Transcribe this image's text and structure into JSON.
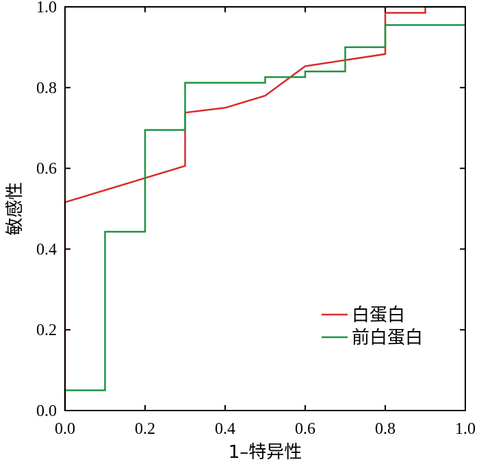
{
  "chart_data": {
    "type": "line",
    "title": "",
    "xlabel": "1–特异性",
    "ylabel": "敏感性",
    "xlim": [
      0,
      1
    ],
    "ylim": [
      0,
      1
    ],
    "x_ticks": [
      "0.0",
      "0.2",
      "0.4",
      "0.6",
      "0.8",
      "1.0"
    ],
    "y_ticks": [
      "0.0",
      "0.2",
      "0.4",
      "0.6",
      "0.8",
      "1.0"
    ],
    "grid": false,
    "legend_position": "bottom-right",
    "series": [
      {
        "name": "白蛋白",
        "color": "#d92b2b",
        "points": [
          [
            0,
            0
          ],
          [
            0,
            0.516
          ],
          [
            0.3,
            0.606
          ],
          [
            0.3,
            0.738
          ],
          [
            0.4,
            0.75
          ],
          [
            0.5,
            0.78
          ],
          [
            0.6,
            0.853
          ],
          [
            0.7,
            0.868
          ],
          [
            0.8,
            0.883
          ],
          [
            0.8,
            0.985
          ],
          [
            0.9,
            0.985
          ],
          [
            0.9,
            1.0
          ],
          [
            1.0,
            1.0
          ]
        ]
      },
      {
        "name": "前白蛋白",
        "color": "#1a9641",
        "points": [
          [
            0,
            0
          ],
          [
            0,
            0.05
          ],
          [
            0.1,
            0.05
          ],
          [
            0.1,
            0.443
          ],
          [
            0.2,
            0.443
          ],
          [
            0.2,
            0.695
          ],
          [
            0.3,
            0.695
          ],
          [
            0.3,
            0.812
          ],
          [
            0.5,
            0.812
          ],
          [
            0.5,
            0.826
          ],
          [
            0.6,
            0.826
          ],
          [
            0.6,
            0.84
          ],
          [
            0.7,
            0.84
          ],
          [
            0.7,
            0.9
          ],
          [
            0.8,
            0.9
          ],
          [
            0.8,
            0.955
          ],
          [
            1.0,
            0.955
          ]
        ]
      }
    ]
  }
}
